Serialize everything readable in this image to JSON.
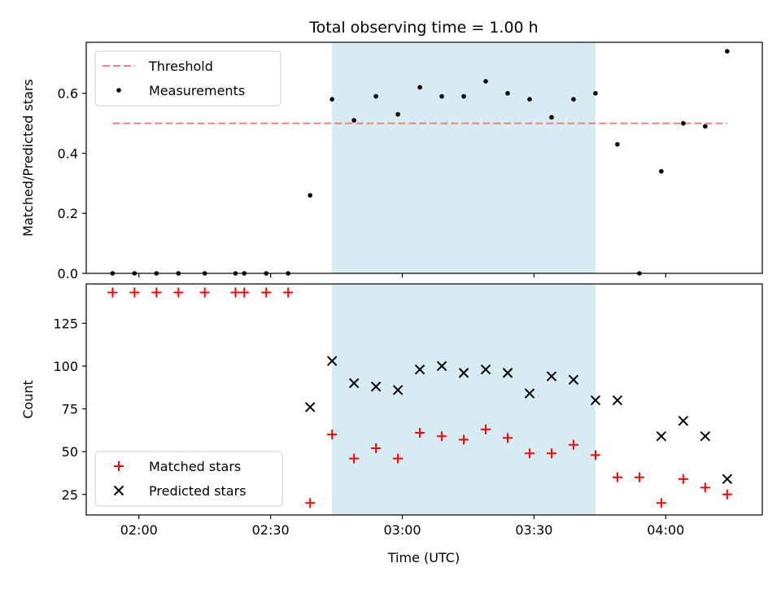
{
  "chart_data": {
    "title": "Total observing time = 1.00 h",
    "xlabel": "Time (UTC)",
    "xlim": [
      "01:48",
      "04:22"
    ],
    "x_ticks": [
      "02:00",
      "02:30",
      "03:00",
      "03:30",
      "04:00"
    ],
    "highlight_span": {
      "start": "02:44",
      "end": "03:44",
      "color": "#add8e6"
    },
    "panels": [
      {
        "type": "scatter",
        "ylabel": "Matched/Predicted stars",
        "ylim": [
          0,
          0.77
        ],
        "y_ticks": [
          0.0,
          0.2,
          0.4,
          0.6
        ],
        "legend_position": "top-left",
        "threshold": {
          "name": "Threshold",
          "value": 0.5,
          "x_start": "01:54",
          "x_end": "04:14",
          "color": "#f08080"
        },
        "series": [
          {
            "name": "Measurements",
            "color": "#000000",
            "marker": "dot",
            "x": [
              "01:54",
              "01:59",
              "02:04",
              "02:09",
              "02:15",
              "02:22",
              "02:24",
              "02:29",
              "02:34",
              "02:39",
              "02:44",
              "02:49",
              "02:54",
              "02:59",
              "03:04",
              "03:09",
              "03:14",
              "03:19",
              "03:24",
              "03:29",
              "03:34",
              "03:39",
              "03:44",
              "03:49",
              "03:54",
              "03:59",
              "04:04",
              "04:09",
              "04:14"
            ],
            "y": [
              0.0,
              0.0,
              0.0,
              0.0,
              0.0,
              0.0,
              0.0,
              0.0,
              0.0,
              0.26,
              0.58,
              0.51,
              0.59,
              0.53,
              0.62,
              0.59,
              0.59,
              0.64,
              0.6,
              0.58,
              0.52,
              0.58,
              0.6,
              0.43,
              0.0,
              0.34,
              0.5,
              0.49,
              0.74
            ]
          }
        ]
      },
      {
        "type": "scatter",
        "ylabel": "Count",
        "ylim": [
          13,
          148
        ],
        "y_ticks": [
          25,
          50,
          75,
          100,
          125
        ],
        "legend_position": "bottom-left",
        "series": [
          {
            "name": "Matched stars",
            "color": "#ff0000",
            "marker": "plus",
            "x": [
              "01:54",
              "01:59",
              "02:04",
              "02:09",
              "02:15",
              "02:22",
              "02:24",
              "02:29",
              "02:34",
              "02:39",
              "02:44",
              "02:49",
              "02:54",
              "02:59",
              "03:04",
              "03:09",
              "03:14",
              "03:19",
              "03:24",
              "03:29",
              "03:34",
              "03:39",
              "03:44",
              "03:49",
              "03:54",
              "03:59",
              "04:04",
              "04:09",
              "04:14"
            ],
            "y": [
              143,
              143,
              143,
              143,
              143,
              143,
              143,
              143,
              143,
              20,
              60,
              46,
              52,
              46,
              61,
              59,
              57,
              63,
              58,
              49,
              49,
              54,
              48,
              35,
              35,
              20,
              34,
              29,
              25
            ]
          },
          {
            "name": "Predicted stars",
            "color": "#000000",
            "marker": "x",
            "x": [
              "02:39",
              "02:44",
              "02:49",
              "02:54",
              "02:59",
              "03:04",
              "03:09",
              "03:14",
              "03:19",
              "03:24",
              "03:29",
              "03:34",
              "03:39",
              "03:44",
              "03:49",
              "03:59",
              "04:04",
              "04:09",
              "04:14"
            ],
            "y": [
              76,
              103,
              90,
              88,
              86,
              98,
              100,
              96,
              98,
              96,
              84,
              94,
              92,
              80,
              80,
              59,
              68,
              59,
              34
            ]
          }
        ]
      }
    ]
  }
}
